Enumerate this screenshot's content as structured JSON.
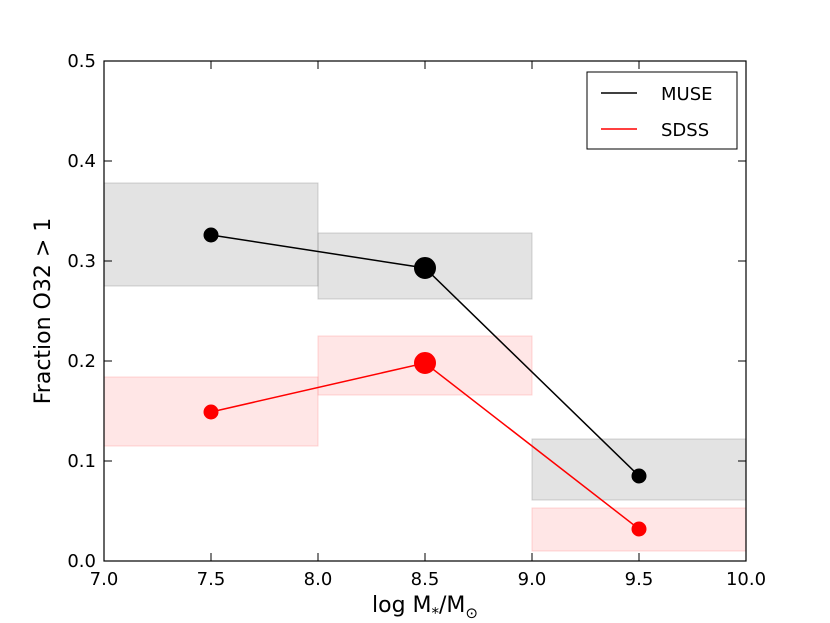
{
  "chart_data": {
    "type": "line",
    "title": "",
    "xlabel_parts": {
      "base": "log M",
      "sub1": "*",
      "sep": "/M",
      "sub2": "⊙"
    },
    "ylabel": "Fraction O32 > 1",
    "xlim": [
      7.0,
      10.0
    ],
    "ylim": [
      0.0,
      0.5
    ],
    "x_ticks": [
      7.0,
      7.5,
      8.0,
      8.5,
      9.0,
      9.5,
      10.0
    ],
    "x_tick_labels": [
      "7.0",
      "7.5",
      "8.0",
      "8.5",
      "9.0",
      "9.5",
      "10.0"
    ],
    "y_ticks": [
      0.0,
      0.1,
      0.2,
      0.3,
      0.4,
      0.5
    ],
    "y_tick_labels": [
      "0.0",
      "0.1",
      "0.2",
      "0.3",
      "0.4",
      "0.5"
    ],
    "legend_position": "top-right",
    "series": [
      {
        "name": "MUSE",
        "color": "#000000",
        "band_color": "#808080",
        "x": [
          7.5,
          8.5,
          9.5
        ],
        "y": [
          0.326,
          0.293,
          0.085
        ],
        "marker_size": [
          "small",
          "large",
          "small"
        ],
        "bands": [
          {
            "x0": 7.0,
            "x1": 8.0,
            "y0": 0.275,
            "y1": 0.378
          },
          {
            "x0": 8.0,
            "x1": 9.0,
            "y0": 0.262,
            "y1": 0.328
          },
          {
            "x0": 9.0,
            "x1": 10.0,
            "y0": 0.061,
            "y1": 0.122
          }
        ]
      },
      {
        "name": "SDSS",
        "color": "#ff0000",
        "band_color": "#ff8c8c",
        "x": [
          7.5,
          8.5,
          9.5
        ],
        "y": [
          0.149,
          0.198,
          0.032
        ],
        "marker_size": [
          "small",
          "large",
          "small"
        ],
        "bands": [
          {
            "x0": 7.0,
            "x1": 8.0,
            "y0": 0.115,
            "y1": 0.184
          },
          {
            "x0": 8.0,
            "x1": 9.0,
            "y0": 0.166,
            "y1": 0.225
          },
          {
            "x0": 9.0,
            "x1": 10.0,
            "y0": 0.01,
            "y1": 0.053
          }
        ]
      }
    ]
  }
}
